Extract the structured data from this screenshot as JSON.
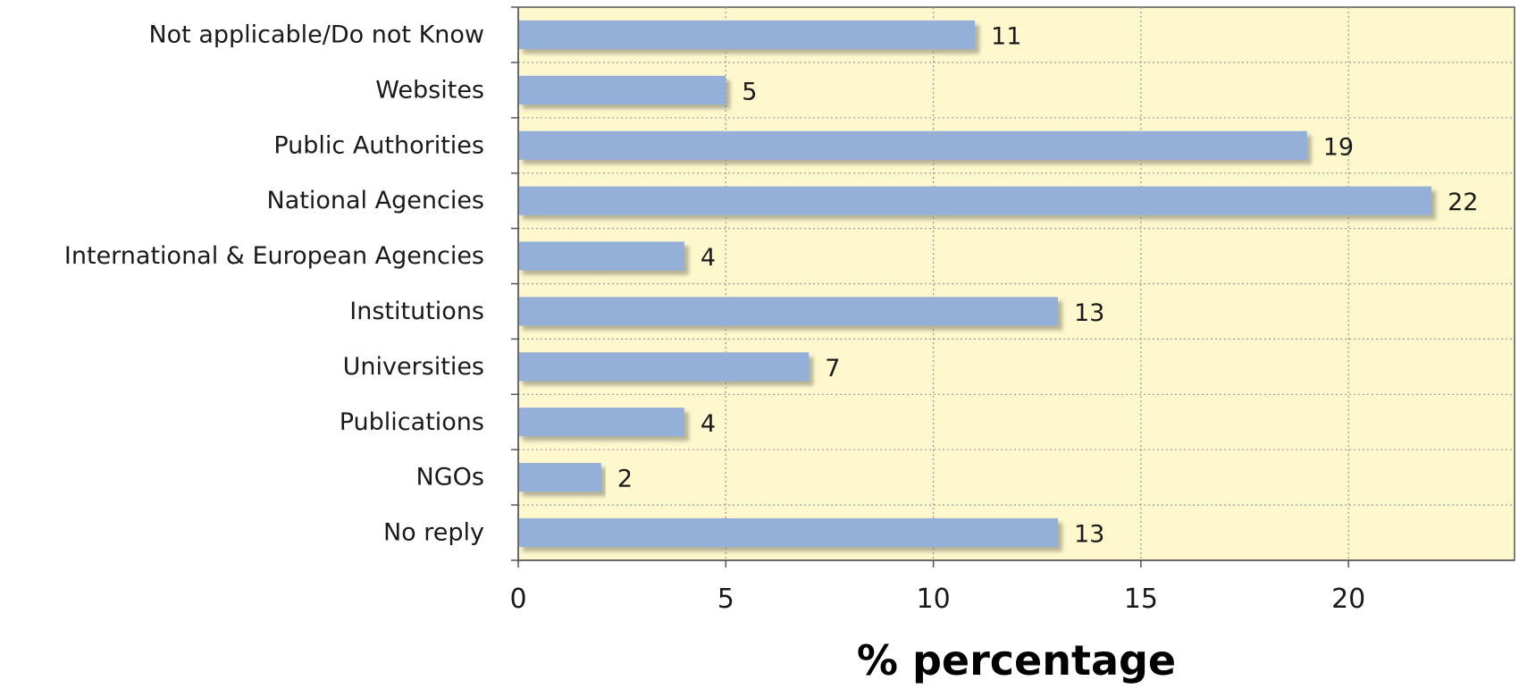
{
  "chart_data": {
    "type": "bar",
    "orientation": "horizontal",
    "categories": [
      "Not applicable/Do not  Know",
      "Websites",
      "Public Authorities",
      "National Agencies",
      "International & European Agencies",
      "Institutions",
      "Universities",
      "Publications",
      "NGOs",
      "No reply"
    ],
    "values": [
      11,
      5,
      19,
      22,
      4,
      13,
      7,
      4,
      2,
      13
    ],
    "xlabel": "% percentage",
    "ylabel": "",
    "xlim": [
      0,
      24
    ],
    "xticks": [
      0,
      5,
      10,
      15,
      20
    ],
    "grid": true,
    "data_labels": true,
    "colors": {
      "bar": "#95b0d8",
      "bar_shadow": "#9a9a8a",
      "plot_background": "#fef8cc",
      "grid": "#9a9a9a",
      "axis": "#555555"
    }
  }
}
